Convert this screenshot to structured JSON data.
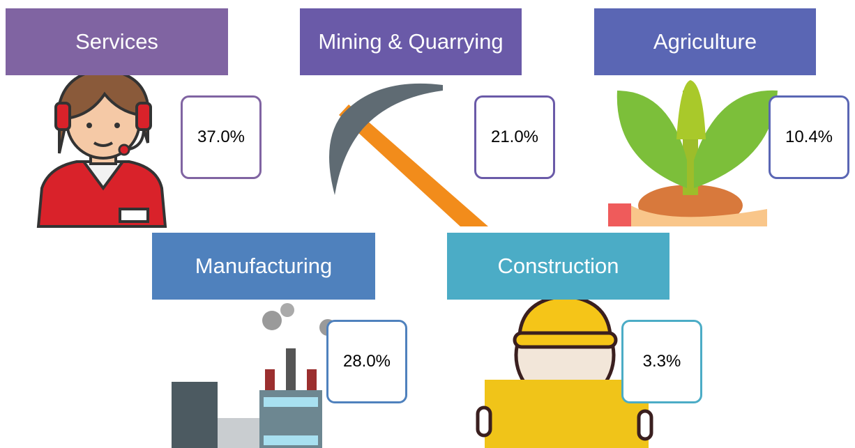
{
  "sectors": [
    {
      "name": "Services",
      "share": "37.0%"
    },
    {
      "name": "Mining & Quarrying",
      "share": "21.0%"
    },
    {
      "name": "Agriculture",
      "share": "10.4%"
    },
    {
      "name": "Manufacturing",
      "share": "28.0%"
    },
    {
      "name": "Construction",
      "share": "3.3%"
    }
  ]
}
